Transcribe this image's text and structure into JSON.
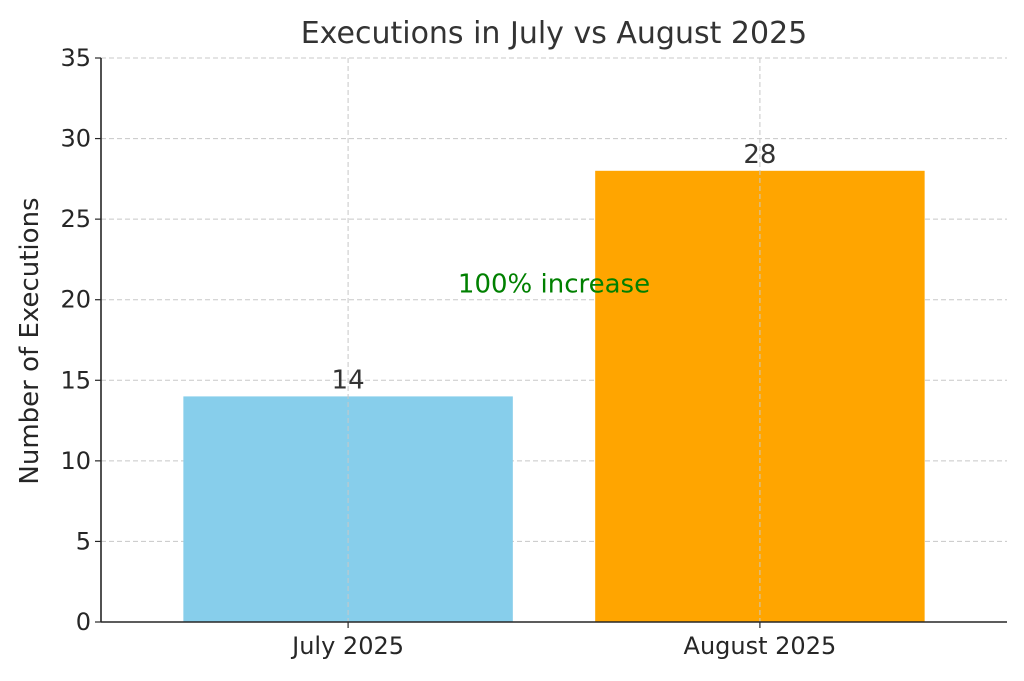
{
  "chart_data": {
    "type": "bar",
    "title": "Executions in July vs August 2025",
    "xlabel": "",
    "ylabel": "Number of Executions",
    "categories": [
      "July 2025",
      "August 2025"
    ],
    "values": [
      14,
      28
    ],
    "bar_colors": [
      "#87ceeb",
      "#ffa500"
    ],
    "data_labels": [
      "14",
      "28"
    ],
    "ylim": [
      0,
      35
    ],
    "yticks": [
      0,
      5,
      10,
      15,
      20,
      25,
      30,
      35
    ],
    "grid": true,
    "legend": "none",
    "annotation": {
      "text": "100% increase",
      "x_between_categories": [
        0,
        1
      ],
      "y": 21,
      "color": "#008000"
    }
  }
}
